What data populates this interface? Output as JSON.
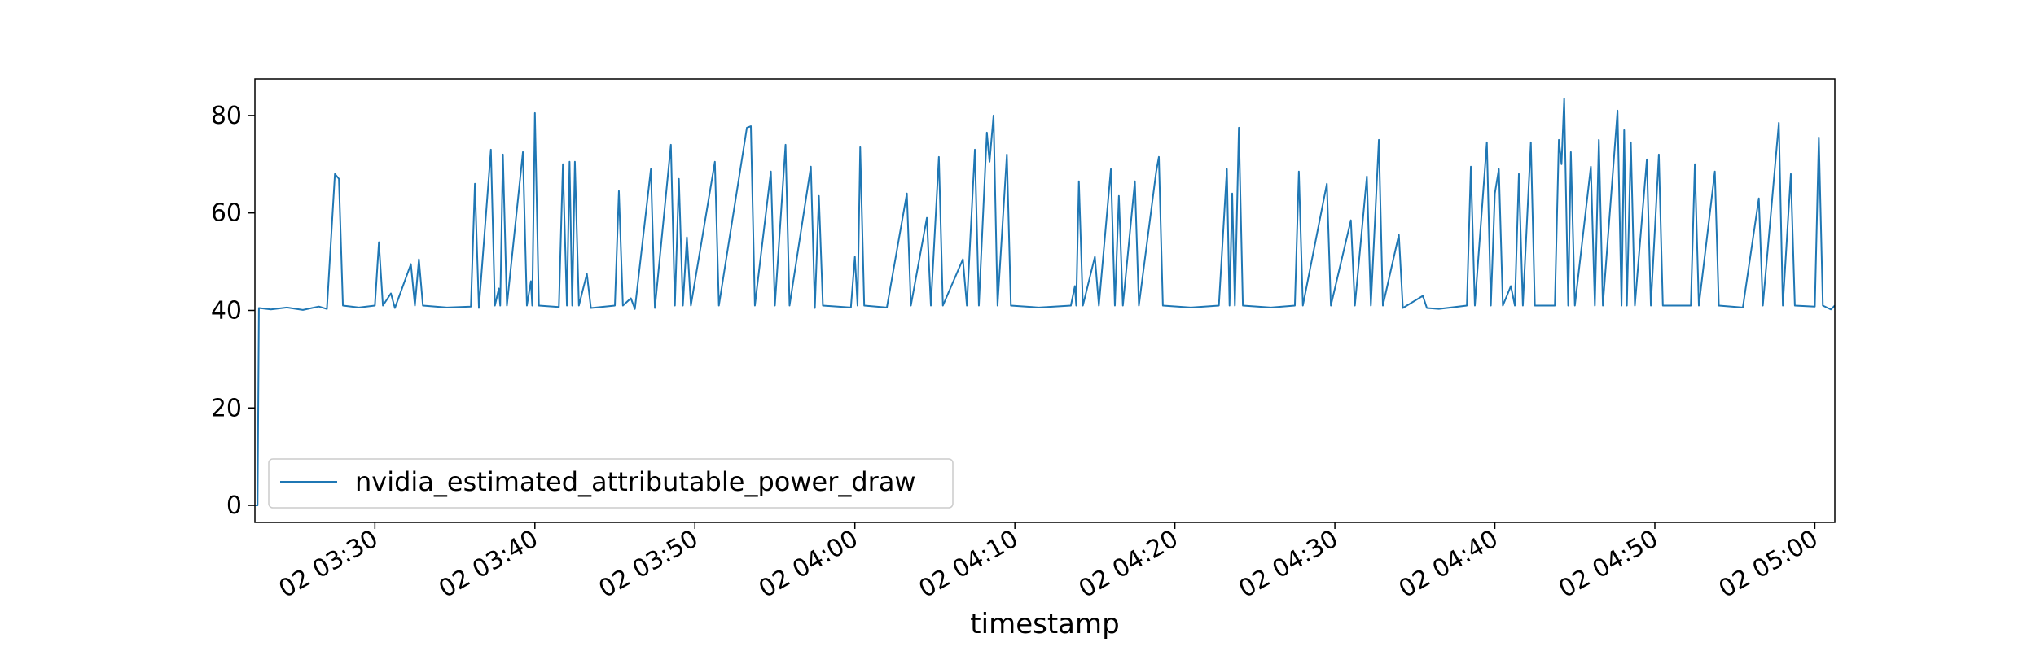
{
  "chart_data": {
    "type": "line",
    "title": "",
    "xlabel": "timestamp",
    "ylabel": "",
    "ylim": [
      -3.5,
      87.5
    ],
    "xlim": [
      "02 03:22:30",
      "02 05:01:15"
    ],
    "yticks": [
      0,
      20,
      40,
      60,
      80
    ],
    "xticks": [
      {
        "t": "02 03:30:00",
        "label": "02 03:30"
      },
      {
        "t": "02 03:40:00",
        "label": "02 03:40"
      },
      {
        "t": "02 03:50:00",
        "label": "02 03:50"
      },
      {
        "t": "02 04:00:00",
        "label": "02 04:00"
      },
      {
        "t": "02 04:10:00",
        "label": "02 04:10"
      },
      {
        "t": "02 04:20:00",
        "label": "02 04:20"
      },
      {
        "t": "02 04:30:00",
        "label": "02 04:30"
      },
      {
        "t": "02 04:40:00",
        "label": "02 04:40"
      },
      {
        "t": "02 04:50:00",
        "label": "02 04:50"
      },
      {
        "t": "02 05:00:00",
        "label": "02 05:00"
      }
    ],
    "grid": false,
    "legend_position": "lower-left",
    "series": [
      {
        "name": "nvidia_estimated_attributable_power_draw",
        "color": "#1f77b4",
        "baseline": 40.8,
        "points": [
          [
            "02 03:22:30",
            0
          ],
          [
            "02 03:22:40",
            0
          ],
          [
            "02 03:22:45",
            40.5
          ],
          [
            "02 03:23:30",
            40.2
          ],
          [
            "02 03:24:30",
            40.6
          ],
          [
            "02 03:25:30",
            40.1
          ],
          [
            "02 03:26:30",
            40.8
          ],
          [
            "02 03:27:00",
            40.3
          ],
          [
            "02 03:27:30",
            68
          ],
          [
            "02 03:27:45",
            67
          ],
          [
            "02 03:28:00",
            41
          ],
          [
            "02 03:29:00",
            40.6
          ],
          [
            "02 03:30:00",
            41
          ],
          [
            "02 03:30:15",
            54
          ],
          [
            "02 03:30:30",
            41
          ],
          [
            "02 03:31:00",
            43.5
          ],
          [
            "02 03:31:15",
            40.5
          ],
          [
            "02 03:32:15",
            49.5
          ],
          [
            "02 03:32:30",
            41
          ],
          [
            "02 03:32:45",
            50.5
          ],
          [
            "02 03:33:00",
            41
          ],
          [
            "02 03:34:30",
            40.6
          ],
          [
            "02 03:36:00",
            40.8
          ],
          [
            "02 03:36:15",
            66
          ],
          [
            "02 03:36:30",
            40.5
          ],
          [
            "02 03:37:15",
            73
          ],
          [
            "02 03:37:30",
            41
          ],
          [
            "02 03:37:45",
            44.5
          ],
          [
            "02 03:37:50",
            41
          ],
          [
            "02 03:38:00",
            72
          ],
          [
            "02 03:38:15",
            41
          ],
          [
            "02 03:39:15",
            72.5
          ],
          [
            "02 03:39:30",
            41
          ],
          [
            "02 03:39:45",
            46
          ],
          [
            "02 03:39:50",
            41
          ],
          [
            "02 03:40:00",
            80.5
          ],
          [
            "02 03:40:15",
            41
          ],
          [
            "02 03:41:30",
            40.7
          ],
          [
            "02 03:41:45",
            70
          ],
          [
            "02 03:42:00",
            41
          ],
          [
            "02 03:42:10",
            70.5
          ],
          [
            "02 03:42:20",
            41
          ],
          [
            "02 03:42:30",
            70.5
          ],
          [
            "02 03:42:45",
            41
          ],
          [
            "02 03:43:15",
            47.5
          ],
          [
            "02 03:43:30",
            40.5
          ],
          [
            "02 03:45:00",
            41
          ],
          [
            "02 03:45:15",
            64.5
          ],
          [
            "02 03:45:30",
            41
          ],
          [
            "02 03:46:00",
            42.5
          ],
          [
            "02 03:46:15",
            40.3
          ],
          [
            "02 03:47:15",
            69
          ],
          [
            "02 03:47:30",
            40.5
          ],
          [
            "02 03:48:30",
            74
          ],
          [
            "02 03:48:45",
            41
          ],
          [
            "02 03:49:00",
            67
          ],
          [
            "02 03:49:15",
            41
          ],
          [
            "02 03:49:30",
            55
          ],
          [
            "02 03:49:45",
            41
          ],
          [
            "02 03:51:15",
            70.5
          ],
          [
            "02 03:51:30",
            41
          ],
          [
            "02 03:53:15",
            77.5
          ],
          [
            "02 03:53:30",
            77.8
          ],
          [
            "02 03:53:45",
            41
          ],
          [
            "02 03:54:45",
            68.5
          ],
          [
            "02 03:55:00",
            41
          ],
          [
            "02 03:55:40",
            74
          ],
          [
            "02 03:55:55",
            41
          ],
          [
            "02 03:57:15",
            69.5
          ],
          [
            "02 03:57:30",
            40.5
          ],
          [
            "02 03:57:45",
            63.5
          ],
          [
            "02 03:58:00",
            41
          ],
          [
            "02 03:59:45",
            40.6
          ],
          [
            "02 04:00:00",
            51
          ],
          [
            "02 04:00:10",
            41
          ],
          [
            "02 04:00:20",
            73.5
          ],
          [
            "02 04:00:35",
            41
          ],
          [
            "02 04:02:00",
            40.6
          ],
          [
            "02 04:03:15",
            64
          ],
          [
            "02 04:03:30",
            41
          ],
          [
            "02 04:04:30",
            59
          ],
          [
            "02 04:04:45",
            41
          ],
          [
            "02 04:05:15",
            71.5
          ],
          [
            "02 04:05:30",
            41
          ],
          [
            "02 04:06:45",
            50.5
          ],
          [
            "02 04:07:00",
            41
          ],
          [
            "02 04:07:30",
            73
          ],
          [
            "02 04:07:45",
            41
          ],
          [
            "02 04:08:15",
            76.5
          ],
          [
            "02 04:08:25",
            70.5
          ],
          [
            "02 04:08:40",
            80
          ],
          [
            "02 04:08:55",
            41
          ],
          [
            "02 04:09:30",
            72
          ],
          [
            "02 04:09:45",
            41
          ],
          [
            "02 04:11:30",
            40.6
          ],
          [
            "02 04:13:30",
            41
          ],
          [
            "02 04:13:45",
            45
          ],
          [
            "02 04:13:50",
            41
          ],
          [
            "02 04:14:00",
            66.5
          ],
          [
            "02 04:14:15",
            41
          ],
          [
            "02 04:15:00",
            51
          ],
          [
            "02 04:15:15",
            41
          ],
          [
            "02 04:16:00",
            69
          ],
          [
            "02 04:16:15",
            41
          ],
          [
            "02 04:16:30",
            63.5
          ],
          [
            "02 04:16:45",
            41
          ],
          [
            "02 04:17:30",
            66.5
          ],
          [
            "02 04:17:45",
            41
          ],
          [
            "02 04:18:50",
            68.5
          ],
          [
            "02 04:19:00",
            71.5
          ],
          [
            "02 04:19:15",
            41
          ],
          [
            "02 04:21:00",
            40.6
          ],
          [
            "02 04:22:45",
            41
          ],
          [
            "02 04:23:15",
            69
          ],
          [
            "02 04:23:25",
            41
          ],
          [
            "02 04:23:35",
            64
          ],
          [
            "02 04:23:45",
            41
          ],
          [
            "02 04:24:00",
            77.5
          ],
          [
            "02 04:24:15",
            41
          ],
          [
            "02 04:26:00",
            40.6
          ],
          [
            "02 04:27:30",
            41
          ],
          [
            "02 04:27:45",
            68.5
          ],
          [
            "02 04:28:00",
            41
          ],
          [
            "02 04:29:30",
            66
          ],
          [
            "02 04:29:45",
            41
          ],
          [
            "02 04:31:00",
            58.5
          ],
          [
            "02 04:31:15",
            41
          ],
          [
            "02 04:32:00",
            67.5
          ],
          [
            "02 04:32:15",
            41
          ],
          [
            "02 04:32:45",
            75
          ],
          [
            "02 04:33:00",
            41
          ],
          [
            "02 04:34:00",
            55.5
          ],
          [
            "02 04:34:15",
            40.5
          ],
          [
            "02 04:35:30",
            43
          ],
          [
            "02 04:35:45",
            40.5
          ],
          [
            "02 04:36:30",
            40.3
          ],
          [
            "02 04:38:15",
            41
          ],
          [
            "02 04:38:30",
            69.5
          ],
          [
            "02 04:38:45",
            41
          ],
          [
            "02 04:39:30",
            74.5
          ],
          [
            "02 04:39:45",
            41
          ],
          [
            "02 04:40:00",
            64
          ],
          [
            "02 04:40:15",
            69
          ],
          [
            "02 04:40:30",
            41
          ],
          [
            "02 04:41:00",
            45
          ],
          [
            "02 04:41:15",
            41
          ],
          [
            "02 04:41:30",
            68
          ],
          [
            "02 04:41:45",
            41
          ],
          [
            "02 04:42:15",
            74.5
          ],
          [
            "02 04:42:30",
            41
          ],
          [
            "02 04:43:45",
            41
          ],
          [
            "02 04:44:00",
            75
          ],
          [
            "02 04:44:10",
            70
          ],
          [
            "02 04:44:20",
            83.5
          ],
          [
            "02 04:44:35",
            41
          ],
          [
            "02 04:44:45",
            72.5
          ],
          [
            "02 04:45:00",
            41
          ],
          [
            "02 04:46:00",
            69.5
          ],
          [
            "02 04:46:15",
            41
          ],
          [
            "02 04:46:30",
            75
          ],
          [
            "02 04:46:45",
            41
          ],
          [
            "02 04:47:40",
            81
          ],
          [
            "02 04:47:55",
            41
          ],
          [
            "02 04:48:05",
            77
          ],
          [
            "02 04:48:15",
            41
          ],
          [
            "02 04:48:30",
            74.5
          ],
          [
            "02 04:48:45",
            41
          ],
          [
            "02 04:49:30",
            71
          ],
          [
            "02 04:49:45",
            41
          ],
          [
            "02 04:50:15",
            72
          ],
          [
            "02 04:50:30",
            41
          ],
          [
            "02 04:52:15",
            41
          ],
          [
            "02 04:52:30",
            70
          ],
          [
            "02 04:52:45",
            41
          ],
          [
            "02 04:53:45",
            68.5
          ],
          [
            "02 04:54:00",
            41
          ],
          [
            "02 04:55:30",
            40.6
          ],
          [
            "02 04:56:30",
            63
          ],
          [
            "02 04:56:45",
            41
          ],
          [
            "02 04:57:45",
            78.5
          ],
          [
            "02 04:58:00",
            41
          ],
          [
            "02 04:58:30",
            68
          ],
          [
            "02 04:58:45",
            41
          ],
          [
            "02 05:00:00",
            40.8
          ],
          [
            "02 05:00:15",
            75.5
          ],
          [
            "02 05:00:30",
            41
          ],
          [
            "02 05:01:00",
            40.2
          ],
          [
            "02 05:01:15",
            41
          ]
        ]
      }
    ]
  }
}
